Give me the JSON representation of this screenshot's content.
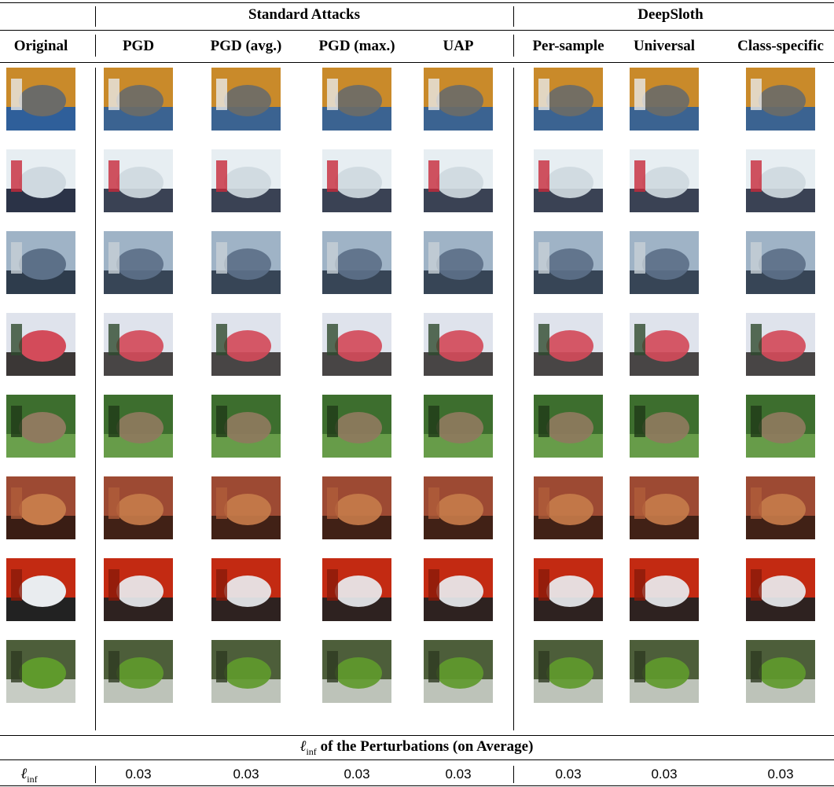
{
  "groups": [
    "Standard Attacks",
    "DeepSloth"
  ],
  "columns": [
    "Original",
    "PGD",
    "PGD (avg.)",
    "PGD (max.)",
    "UAP",
    "Per-sample",
    "Universal",
    "Class-specific"
  ],
  "section": {
    "symbol": "ℓ",
    "subscript": "inf",
    "title": "of the Perturbations (on Average)"
  },
  "row": {
    "symbol": "ℓ",
    "subscript": "inf",
    "values": [
      "0.03",
      "0.03",
      "0.03",
      "0.03",
      "0.03",
      "0.03",
      "0.03"
    ]
  }
}
